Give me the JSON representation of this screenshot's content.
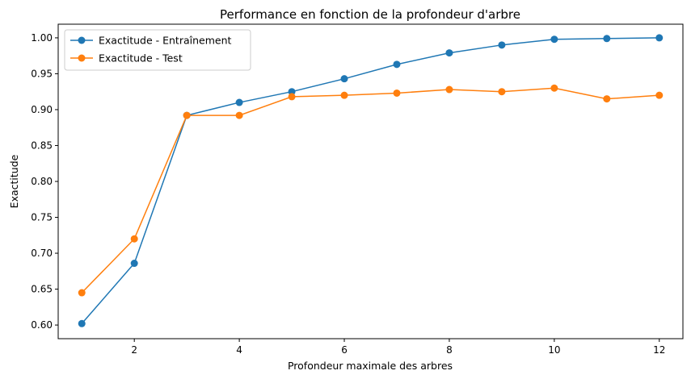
{
  "chart_data": {
    "type": "line",
    "title": "Performance en fonction de la profondeur d'arbre",
    "xlabel": "Profondeur maximale des arbres",
    "ylabel": "Exactitude",
    "x": [
      1,
      2,
      3,
      4,
      5,
      6,
      7,
      8,
      9,
      10,
      11,
      12
    ],
    "xlim": [
      0.55,
      12.45
    ],
    "ylim": [
      0.581,
      1.019
    ],
    "xticks": [
      2,
      4,
      6,
      8,
      10,
      12
    ],
    "xtick_labels": [
      "2",
      "4",
      "6",
      "8",
      "10",
      "12"
    ],
    "yticks": [
      0.6,
      0.65,
      0.7,
      0.75,
      0.8,
      0.85,
      0.9,
      0.95,
      1.0
    ],
    "ytick_labels": [
      "0.60",
      "0.65",
      "0.70",
      "0.75",
      "0.80",
      "0.85",
      "0.90",
      "0.95",
      "1.00"
    ],
    "grid": false,
    "legend_position": "top-left",
    "series": [
      {
        "name": "Exactitude - Entraînement",
        "color": "#1f77b4",
        "values": [
          0.602,
          0.686,
          0.892,
          0.91,
          0.925,
          0.943,
          0.963,
          0.979,
          0.99,
          0.998,
          0.999,
          1.0
        ]
      },
      {
        "name": "Exactitude - Test",
        "color": "#ff7f0e",
        "values": [
          0.645,
          0.72,
          0.892,
          0.892,
          0.918,
          0.92,
          0.923,
          0.928,
          0.925,
          0.93,
          0.915,
          0.92
        ]
      }
    ]
  }
}
